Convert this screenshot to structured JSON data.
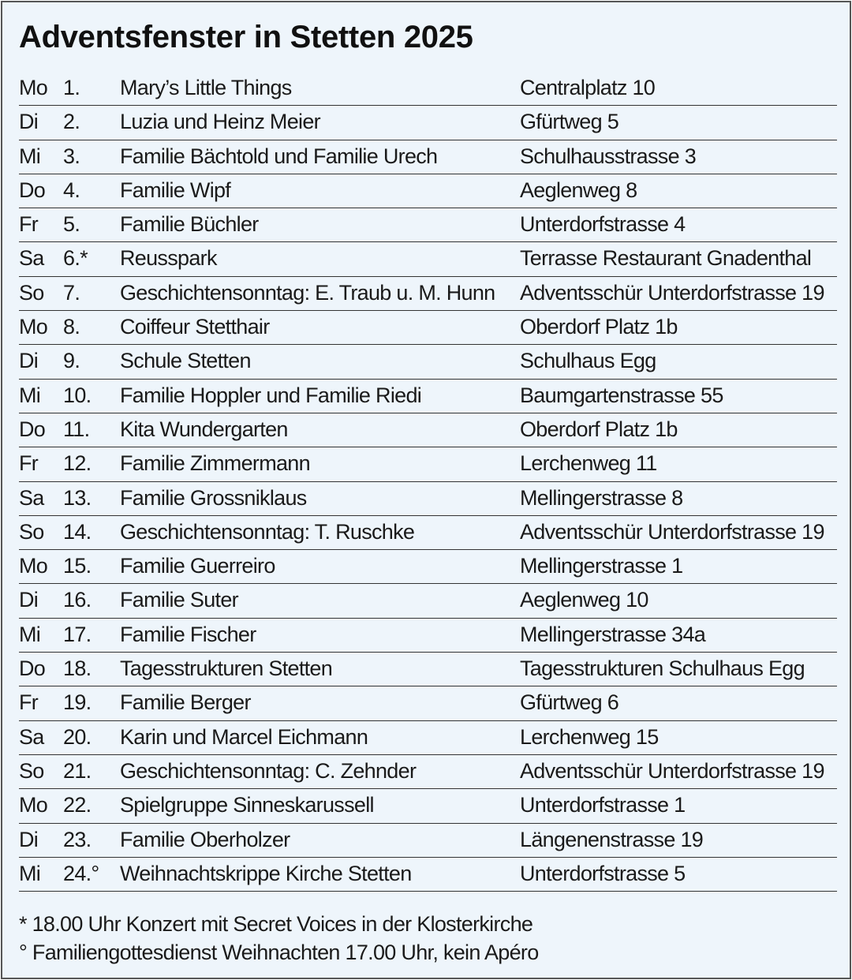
{
  "title": "Adventsfenster in Stetten 2025",
  "rows": [
    {
      "day": "Mo",
      "num": "1.",
      "name": "Mary’s Little Things",
      "address": "Centralplatz 10"
    },
    {
      "day": "Di",
      "num": "2.",
      "name": "Luzia und Heinz Meier",
      "address": "Gfürtweg 5"
    },
    {
      "day": "Mi",
      "num": "3.",
      "name": "Familie Bächtold und Familie Urech",
      "address": "Schulhausstrasse 3"
    },
    {
      "day": "Do",
      "num": "4.",
      "name": "Familie Wipf",
      "address": "Aeglenweg 8"
    },
    {
      "day": "Fr",
      "num": "5.",
      "name": "Familie Büchler",
      "address": "Unterdorfstrasse 4"
    },
    {
      "day": "Sa",
      "num": "6.*",
      "name": "Reusspark",
      "address": "Terrasse Restaurant Gnadenthal"
    },
    {
      "day": "So",
      "num": "7.",
      "name": "Geschichtensonntag: E. Traub u. M. Hunn",
      "address": "Adventsschür Unterdorfstrasse 19"
    },
    {
      "day": "Mo",
      "num": "8.",
      "name": "Coiffeur Stetthair",
      "address": "Oberdorf Platz 1b"
    },
    {
      "day": "Di",
      "num": "9.",
      "name": "Schule Stetten",
      "address": "Schulhaus Egg"
    },
    {
      "day": "Mi",
      "num": "10.",
      "name": "Familie Hoppler und Familie Riedi",
      "address": "Baumgartenstrasse 55"
    },
    {
      "day": "Do",
      "num": "11.",
      "name": "Kita Wundergarten",
      "address": "Oberdorf Platz 1b"
    },
    {
      "day": "Fr",
      "num": "12.",
      "name": "Familie Zimmermann",
      "address": "Lerchenweg 11"
    },
    {
      "day": "Sa",
      "num": "13.",
      "name": "Familie Grossniklaus",
      "address": "Mellingerstrasse 8"
    },
    {
      "day": "So",
      "num": "14.",
      "name": "Geschichtensonntag: T. Ruschke",
      "address": "Adventsschür Unterdorfstrasse 19"
    },
    {
      "day": "Mo",
      "num": "15.",
      "name": "Familie Guerreiro",
      "address": "Mellingerstrasse 1"
    },
    {
      "day": "Di",
      "num": "16.",
      "name": "Familie Suter",
      "address": "Aeglenweg 10"
    },
    {
      "day": "Mi",
      "num": "17.",
      "name": "Familie Fischer",
      "address": "Mellingerstrasse 34a"
    },
    {
      "day": "Do",
      "num": "18.",
      "name": "Tagesstrukturen Stetten",
      "address": "Tagesstrukturen Schulhaus Egg"
    },
    {
      "day": "Fr",
      "num": "19.",
      "name": "Familie Berger",
      "address": "Gfürtweg 6"
    },
    {
      "day": "Sa",
      "num": "20.",
      "name": "Karin und Marcel Eichmann",
      "address": "Lerchenweg 15"
    },
    {
      "day": "So",
      "num": "21.",
      "name": "Geschichtensonntag: C. Zehnder",
      "address": "Adventsschür Unterdorfstrasse 19"
    },
    {
      "day": "Mo",
      "num": "22.",
      "name": "Spielgruppe Sinneskarussell",
      "address": "Unterdorfstrasse 1"
    },
    {
      "day": "Di",
      "num": "23.",
      "name": "Familie Oberholzer",
      "address": "Längenenstrasse 19"
    },
    {
      "day": "Mi",
      "num": "24.°",
      "name": "Weihnachtskrippe Kirche Stetten",
      "address": "Unterdorfstrasse 5"
    }
  ],
  "footnotes": [
    "* 18.00 Uhr Konzert mit Secret Voices in der Klosterkirche",
    "° Familiengottesdienst Weihnachten 17.00 Uhr, kein Apéro"
  ]
}
